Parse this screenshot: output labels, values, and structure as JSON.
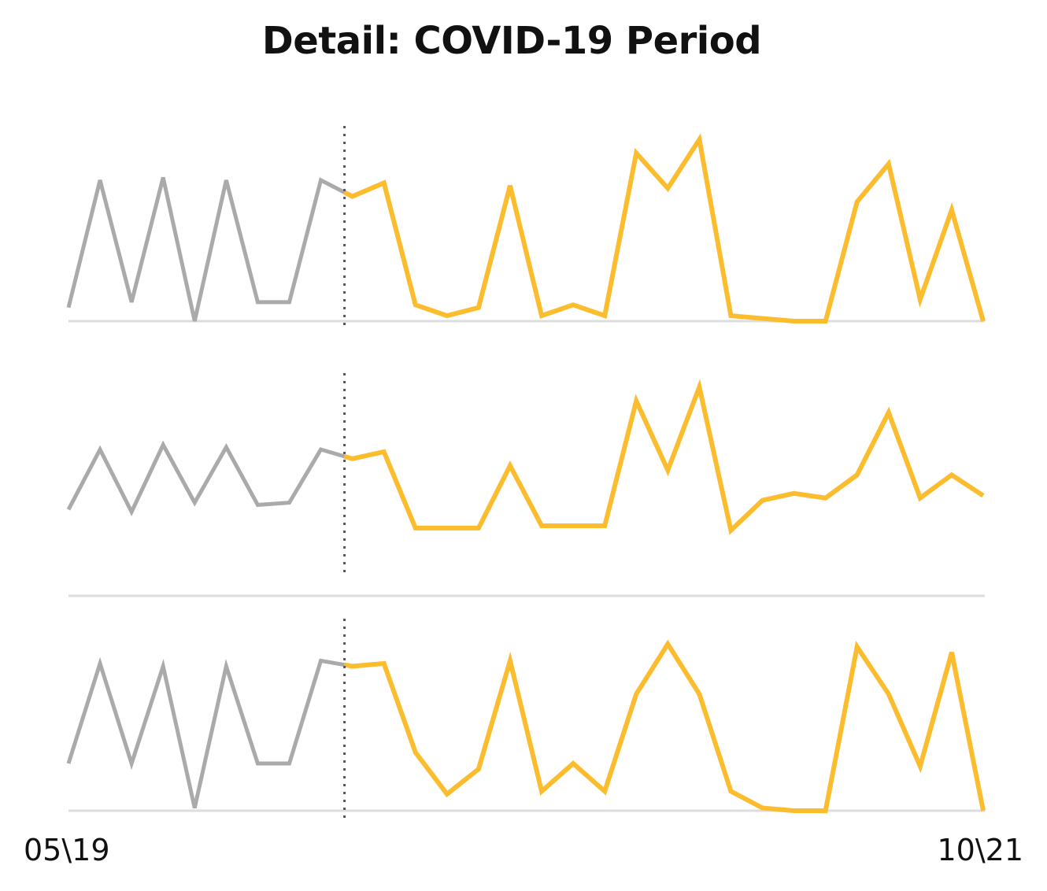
{
  "title": "Detail: COVID-19 Period",
  "chart_data": {
    "type": "line",
    "title": "Detail: COVID-19 Period",
    "x_start_label": "05\\19",
    "x_end_label": "10\\21",
    "x_count": 30,
    "marker_index": 8.75,
    "colors": {
      "pre": "#aaaaaa",
      "post": "#fbbc2e",
      "baseline": "#dddddd",
      "marker": "#555555"
    },
    "panels": [
      {
        "values": [
          5,
          52,
          7,
          53,
          0,
          52,
          7,
          7,
          52,
          46,
          51,
          6,
          2,
          5,
          50,
          2,
          6,
          2,
          62,
          49,
          67,
          2,
          1,
          0,
          0,
          44,
          58,
          8,
          41,
          0
        ],
        "ylim": [
          0,
          72
        ]
      },
      {
        "values": [
          22,
          48,
          21,
          50,
          25,
          49,
          24,
          25,
          48,
          44,
          47,
          14,
          14,
          14,
          41,
          15,
          15,
          15,
          69,
          39,
          75,
          13,
          26,
          29,
          27,
          37,
          64,
          27,
          37,
          28
        ],
        "ylim": [
          0,
          79
        ]
      },
      {
        "values": [
          17,
          53,
          17,
          52,
          1,
          52,
          17,
          17,
          54,
          52,
          53,
          21,
          6,
          15,
          54,
          7,
          17,
          7,
          42,
          60,
          42,
          7,
          1,
          0,
          0,
          59,
          42,
          16,
          57,
          0
        ],
        "ylim": [
          0,
          68
        ]
      }
    ]
  }
}
